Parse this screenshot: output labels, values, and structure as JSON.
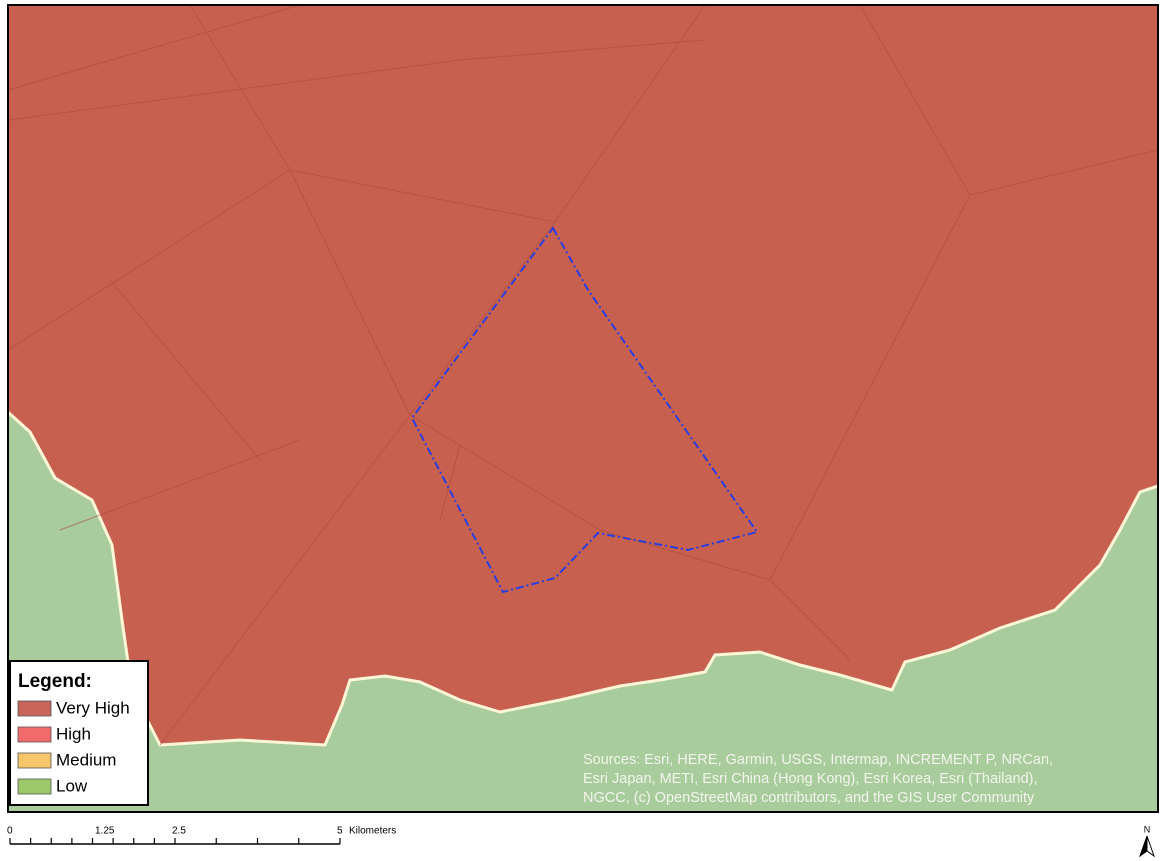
{
  "legend": {
    "title": "Legend:",
    "items": [
      {
        "name": "Very High",
        "color": "#c8655a"
      },
      {
        "name": "High",
        "color": "#f26b6b"
      },
      {
        "name": "Medium",
        "color": "#f7c66b"
      },
      {
        "name": "Low",
        "color": "#9cc86a"
      }
    ]
  },
  "sources": [
    "Sources: Esri, HERE, Garmin, USGS, Intermap, INCREMENT P, NRCan,",
    "Esri Japan, METI, Esri China (Hong Kong), Esri Korea, Esri (Thailand),",
    "NGCC, (c) OpenStreetMap contributors, and the GIS User Community"
  ],
  "scale_bar": {
    "labels": [
      "0",
      "1.25",
      "2.5",
      "5"
    ],
    "unit": "Kilometers"
  },
  "north_arrow": "N"
}
